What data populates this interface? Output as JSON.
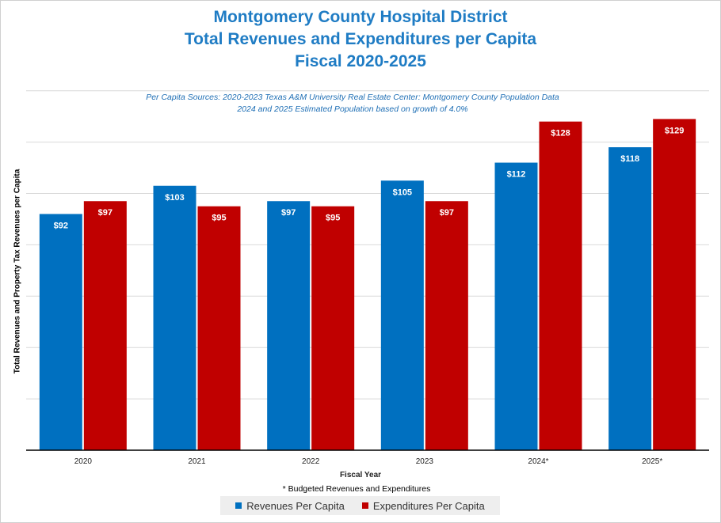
{
  "chart_data": {
    "type": "bar",
    "title": [
      "Montgomery County Hospital District",
      "Total Revenues and Expenditures per Capita",
      "Fiscal 2020-2025"
    ],
    "subtitle": [
      "Per Capita Sources: 2020-2023 Texas A&M University Real Estate Center: Montgomery County Population Data",
      "2024 and 2025 Estimated Population based on growth of 4.0%"
    ],
    "ylabel": "Total Revenues and Property Tax Revenues  per Capita",
    "xlabel": "Fiscal Year",
    "footnote": "* Budgeted Revenues and Expenditures",
    "categories": [
      "2020",
      "2021",
      "2022",
      "2023",
      "2024*",
      "2025*"
    ],
    "series": [
      {
        "name": "Revenues Per Capita",
        "color": "#0070c0",
        "values": [
          92,
          103,
          97,
          105,
          112,
          118
        ],
        "labels": [
          "$92",
          "$103",
          "$97",
          "$105",
          "$112",
          "$118"
        ]
      },
      {
        "name": "Expenditures Per Capita",
        "color": "#c00000",
        "values": [
          97,
          95,
          95,
          97,
          128,
          129
        ],
        "labels": [
          "$97",
          "$95",
          "$95",
          "$97",
          "$128",
          "$129"
        ]
      }
    ],
    "ylim": [
      0,
      140
    ],
    "grid": true,
    "legend_position": "bottom"
  }
}
